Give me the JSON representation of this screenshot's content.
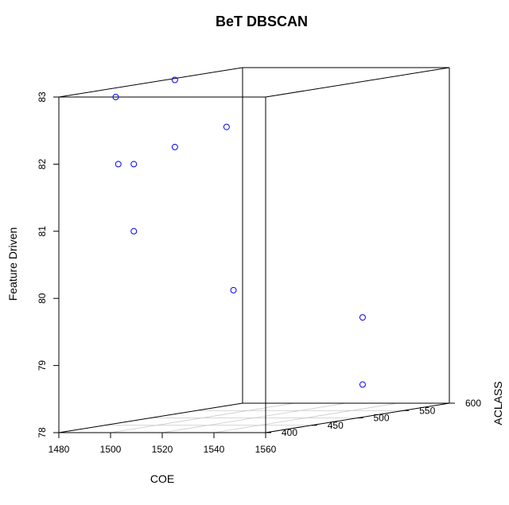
{
  "chart_data": {
    "type": "scatter3d",
    "title": "BeT DBSCAN",
    "xlabel": "COE",
    "ylabel": "ACLASS",
    "zlabel": "Feature Driven",
    "xlim": [
      1480,
      1560
    ],
    "ylim": [
      400,
      600
    ],
    "zlim": [
      78,
      83
    ],
    "x_ticks": [
      "1480",
      "1500",
      "1520",
      "1540",
      "1560"
    ],
    "y_ticks": [
      "400",
      "450",
      "500",
      "550",
      "600"
    ],
    "z_ticks": [
      "78",
      "79",
      "80",
      "81",
      "82",
      "83"
    ],
    "grid": true,
    "point_color": "#0000ff",
    "points": [
      {
        "x": 1502,
        "y": 400,
        "z": 83.0
      },
      {
        "x": 1503,
        "y": 400,
        "z": 82.0
      },
      {
        "x": 1509,
        "y": 400,
        "z": 82.0
      },
      {
        "x": 1509,
        "y": 400,
        "z": 81.0
      },
      {
        "x": 1516,
        "y": 425,
        "z": 82.2
      },
      {
        "x": 1516,
        "y": 425,
        "z": 83.2
      },
      {
        "x": 1536,
        "y": 425,
        "z": 82.5
      },
      {
        "x": 1544,
        "y": 410,
        "z": 80.1
      },
      {
        "x": 1530,
        "y": 590,
        "z": 79.3
      },
      {
        "x": 1530,
        "y": 590,
        "z": 78.3
      }
    ]
  }
}
